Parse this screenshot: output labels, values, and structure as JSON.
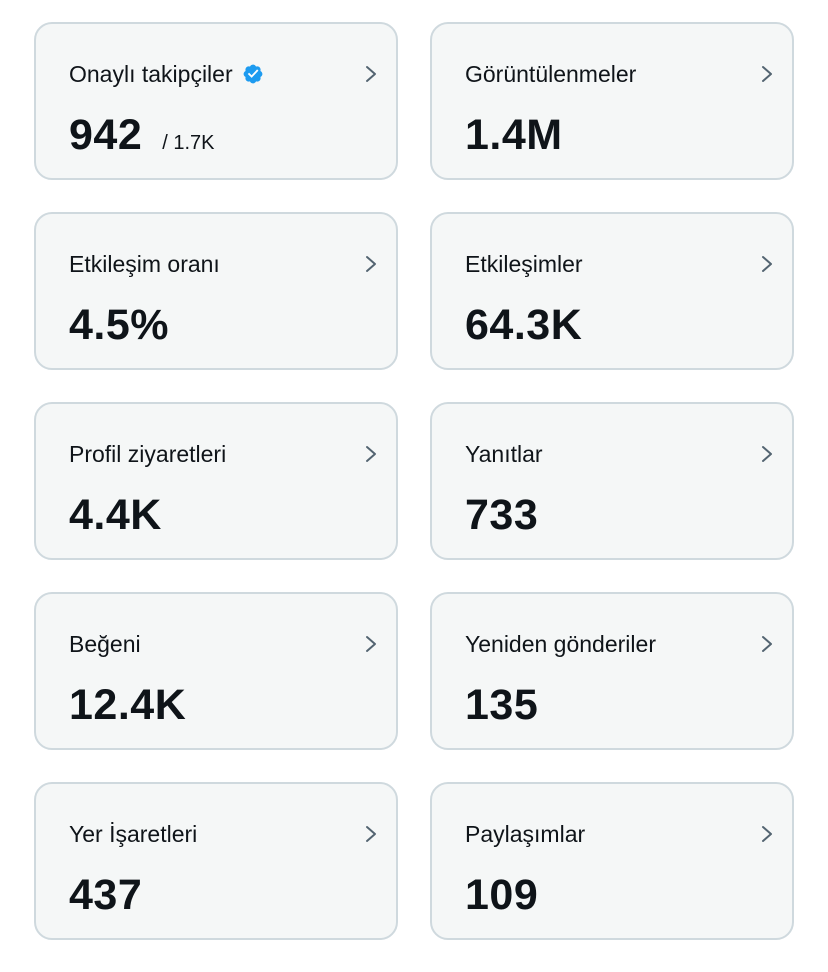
{
  "colors": {
    "card_background": "#f5f7f7",
    "card_border": "#cfd9de",
    "text": "#0f1419",
    "chevron": "#536471",
    "verified_badge": "#1d9bf0"
  },
  "icons": {
    "verified": "verified-badge-icon",
    "chevron": "chevron-right-icon"
  },
  "metrics": [
    {
      "label": "Onaylı takipçiler",
      "value": "942",
      "sub": "/ 1.7K",
      "verified": true
    },
    {
      "label": "Görüntülenmeler",
      "value": "1.4M"
    },
    {
      "label": "Etkileşim oranı",
      "value": "4.5%"
    },
    {
      "label": "Etkileşimler",
      "value": "64.3K"
    },
    {
      "label": "Profil ziyaretleri",
      "value": "4.4K"
    },
    {
      "label": "Yanıtlar",
      "value": "733"
    },
    {
      "label": "Beğeni",
      "value": "12.4K"
    },
    {
      "label": "Yeniden gönderiler",
      "value": "135"
    },
    {
      "label": "Yer İşaretleri",
      "value": "437"
    },
    {
      "label": "Paylaşımlar",
      "value": "109"
    }
  ]
}
